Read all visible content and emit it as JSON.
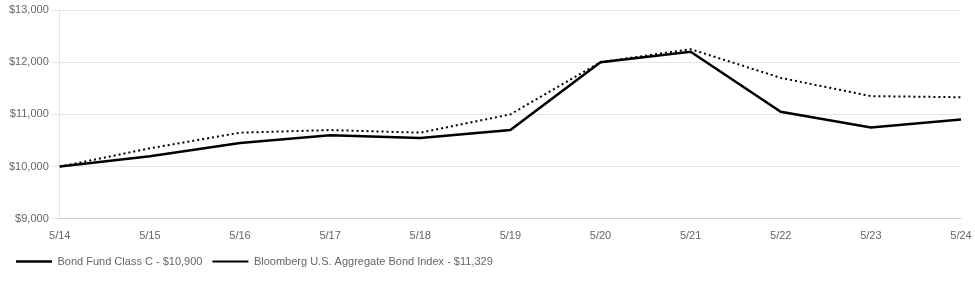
{
  "chart_data": {
    "type": "line",
    "categories": [
      "5/14",
      "5/15",
      "5/16",
      "5/17",
      "5/18",
      "5/19",
      "5/20",
      "5/21",
      "5/22",
      "5/23",
      "5/24"
    ],
    "series": [
      {
        "name": "Bond Fund Class C - $10,900",
        "color": "#000000",
        "line_style": "solid",
        "values": [
          10000,
          10200,
          10450,
          10600,
          10550,
          10700,
          12000,
          12200,
          11050,
          10750,
          10900
        ]
      },
      {
        "name": "Bloomberg U.S. Aggregate Bond Index - $11,329",
        "color": "#000000",
        "line_style": "dotted",
        "values": [
          10000,
          10350,
          10650,
          10700,
          10650,
          11000,
          12000,
          12250,
          11700,
          11350,
          11329
        ]
      }
    ],
    "ylim": [
      9000,
      13000
    ],
    "yticks": [
      {
        "value": 9000,
        "label": "$9,000"
      },
      {
        "value": 10000,
        "label": "$10,000"
      },
      {
        "value": 11000,
        "label": "$11,000"
      },
      {
        "value": 12000,
        "label": "$12,000"
      },
      {
        "value": 13000,
        "label": "$13,000"
      }
    ],
    "grid": "y",
    "legend": "lower left"
  }
}
